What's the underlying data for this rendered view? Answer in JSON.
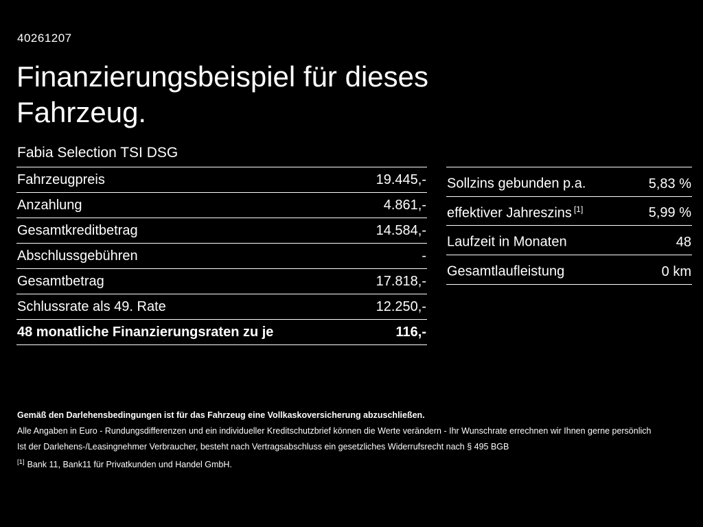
{
  "page": {
    "doc_id": "40261207",
    "title_line1": "Finanzierungsbeispiel für dieses",
    "title_line2": "Fahrzeug.",
    "subtitle": "Fabia Selection TSI DSG"
  },
  "left_table": {
    "rows": [
      {
        "label": "Fahrzeugpreis",
        "value": "19.445,-"
      },
      {
        "label": "Anzahlung",
        "value": "4.861,-"
      },
      {
        "label": "Gesamtkreditbetrag",
        "value": "14.584,-"
      },
      {
        "label": "Abschlussgebühren",
        "value": "-"
      },
      {
        "label": "Gesamtbetrag",
        "value": "17.818,-"
      },
      {
        "label": "Schlussrate als 49. Rate",
        "value": "12.250,-"
      },
      {
        "label": "48 monatliche Finanzierungsraten zu je",
        "value": "116,-"
      }
    ]
  },
  "right_table": {
    "rows": [
      {
        "label": "Sollzins gebunden p.a.",
        "sup": "",
        "value": "5,83 %"
      },
      {
        "label": "effektiver Jahreszins",
        "sup": "[1]",
        "value": "5,99 %"
      },
      {
        "label": "Laufzeit in Monaten",
        "sup": "",
        "value": "48"
      },
      {
        "label": "Gesamtlaufleistung",
        "sup": "",
        "value": "0 km"
      }
    ]
  },
  "footer": {
    "line1": "Gemäß den Darlehensbedingungen ist für das Fahrzeug eine Vollkaskoversicherung abzuschließen.",
    "line2": "Alle Angaben in Euro - Rundungsdifferenzen und ein individueller Kreditschutzbrief können die Werte verändern - Ihr Wunschrate errechnen wir Ihnen gerne persönlich",
    "line3": "Ist der Darlehens-/Leasingnehmer Verbraucher, besteht nach Vertragsabschluss ein gesetzliches Widerrufsrecht nach § 495 BGB",
    "footnote_marker": "[1]",
    "footnote_text": "Bank 11, Bank11 für Privatkunden und Handel GmbH."
  },
  "colors": {
    "background": "#000000",
    "text": "#ffffff",
    "divider": "#ffffff"
  }
}
